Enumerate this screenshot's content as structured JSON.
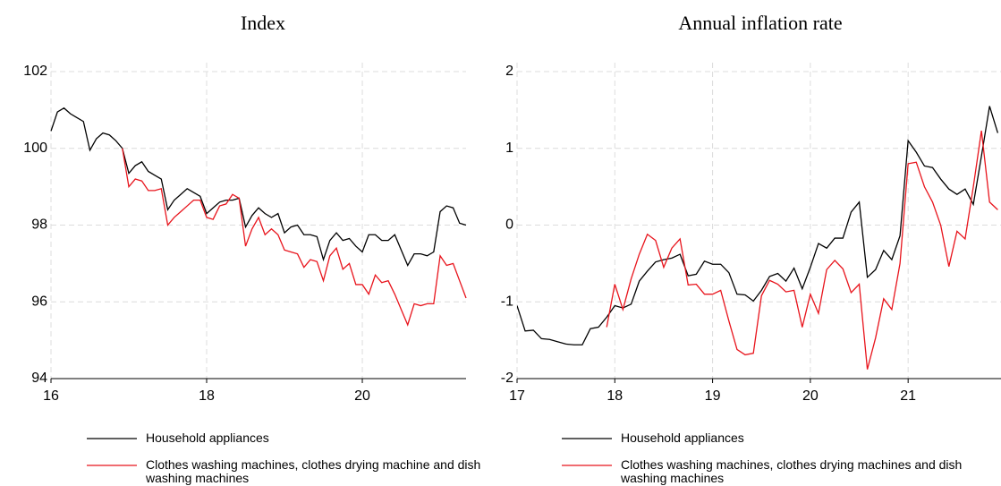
{
  "chart_data": [
    {
      "type": "line",
      "title": "Index",
      "x": [
        16,
        16.083,
        16.167,
        16.25,
        16.333,
        16.417,
        16.5,
        16.583,
        16.667,
        16.75,
        16.833,
        16.917,
        17,
        17.083,
        17.167,
        17.25,
        17.333,
        17.417,
        17.5,
        17.583,
        17.667,
        17.75,
        17.833,
        17.917,
        18,
        18.083,
        18.167,
        18.25,
        18.333,
        18.417,
        18.5,
        18.583,
        18.667,
        18.75,
        18.833,
        18.917,
        19,
        19.083,
        19.167,
        19.25,
        19.333,
        19.417,
        19.5,
        19.583,
        19.667,
        19.75,
        19.833,
        19.917,
        20,
        20.083,
        20.167,
        20.25,
        20.333,
        20.417,
        20.5,
        20.583,
        20.667,
        20.75,
        20.833,
        20.917,
        21,
        21.083,
        21.167,
        21.25,
        21.333
      ],
      "series": [
        {
          "name": "Household appliances",
          "color": "#000000",
          "values": [
            100.45,
            100.95,
            101.05,
            100.9,
            100.8,
            100.7,
            99.95,
            100.25,
            100.4,
            100.35,
            100.2,
            100.0,
            99.35,
            99.55,
            99.65,
            99.4,
            99.3,
            99.2,
            98.4,
            98.65,
            98.8,
            98.95,
            98.85,
            98.75,
            98.3,
            98.45,
            98.6,
            98.65,
            98.65,
            98.7,
            97.95,
            98.25,
            98.45,
            98.3,
            98.2,
            98.3,
            97.8,
            97.95,
            98.0,
            97.75,
            97.75,
            97.7,
            97.1,
            97.6,
            97.8,
            97.6,
            97.65,
            97.45,
            97.3,
            97.75,
            97.75,
            97.6,
            97.6,
            97.75,
            97.35,
            96.95,
            97.25,
            97.25,
            97.2,
            97.3,
            98.35,
            98.5,
            98.45,
            98.05,
            98.0
          ]
        },
        {
          "name": "Clothes washing machines, clothes drying machine and dish washing machines",
          "color": "#e8141c",
          "values": [
            null,
            null,
            null,
            null,
            null,
            null,
            null,
            null,
            null,
            null,
            null,
            100.0,
            99.0,
            99.2,
            99.15,
            98.9,
            98.9,
            98.95,
            98.0,
            98.2,
            98.35,
            98.5,
            98.65,
            98.65,
            98.2,
            98.15,
            98.5,
            98.55,
            98.8,
            98.7,
            97.45,
            97.9,
            98.2,
            97.75,
            97.9,
            97.75,
            97.35,
            97.3,
            97.25,
            96.9,
            97.1,
            97.05,
            96.55,
            97.2,
            97.4,
            96.85,
            97.0,
            96.45,
            96.45,
            96.2,
            96.7,
            96.5,
            96.55,
            96.2,
            95.8,
            95.4,
            95.95,
            95.9,
            95.95,
            95.95,
            97.2,
            96.95,
            97.0,
            96.55,
            96.1
          ]
        }
      ],
      "xlim": [
        16,
        21.333
      ],
      "xticks": [
        16,
        18,
        20
      ],
      "ylim": [
        94,
        102
      ],
      "yticks": [
        94,
        96,
        98,
        100,
        102
      ],
      "grid": true
    },
    {
      "type": "line",
      "title": "Annual inflation rate",
      "x": [
        17,
        17.083,
        17.167,
        17.25,
        17.333,
        17.417,
        17.5,
        17.583,
        17.667,
        17.75,
        17.833,
        17.917,
        18,
        18.083,
        18.167,
        18.25,
        18.333,
        18.417,
        18.5,
        18.583,
        18.667,
        18.75,
        18.833,
        18.917,
        19,
        19.083,
        19.167,
        19.25,
        19.333,
        19.417,
        19.5,
        19.583,
        19.667,
        19.75,
        19.833,
        19.917,
        20,
        20.083,
        20.167,
        20.25,
        20.333,
        20.417,
        20.5,
        20.583,
        20.667,
        20.75,
        20.833,
        20.917,
        21,
        21.083,
        21.167,
        21.25,
        21.333,
        21.417,
        21.5,
        21.583,
        21.667,
        21.75,
        21.833,
        21.917
      ],
      "series": [
        {
          "name": "Household appliances",
          "color": "#000000",
          "values": [
            -1.05,
            -1.38,
            -1.37,
            -1.48,
            -1.49,
            -1.52,
            -1.55,
            -1.56,
            -1.56,
            -1.35,
            -1.33,
            -1.2,
            -1.05,
            -1.08,
            -1.03,
            -0.73,
            -0.6,
            -0.48,
            -0.45,
            -0.43,
            -0.38,
            -0.66,
            -0.64,
            -0.47,
            -0.51,
            -0.51,
            -0.62,
            -0.9,
            -0.91,
            -0.99,
            -0.85,
            -0.67,
            -0.63,
            -0.73,
            -0.56,
            -0.83,
            -0.55,
            -0.24,
            -0.3,
            -0.17,
            -0.17,
            0.17,
            0.3,
            -0.68,
            -0.58,
            -0.33,
            -0.45,
            -0.14,
            1.1,
            0.95,
            0.77,
            0.75,
            0.6,
            0.47,
            0.4,
            0.47,
            0.27,
            0.9,
            1.55,
            1.2
          ]
        },
        {
          "name": "Clothes washing machines, clothes drying machines and dish washing machines",
          "color": "#e8141c",
          "values": [
            null,
            null,
            null,
            null,
            null,
            null,
            null,
            null,
            null,
            null,
            null,
            -1.33,
            -0.77,
            -1.1,
            -0.7,
            -0.38,
            -0.12,
            -0.2,
            -0.55,
            -0.3,
            -0.18,
            -0.78,
            -0.77,
            -0.9,
            -0.9,
            -0.85,
            -1.25,
            -1.62,
            -1.69,
            -1.67,
            -0.92,
            -0.72,
            -0.77,
            -0.87,
            -0.85,
            -1.33,
            -0.9,
            -1.15,
            -0.58,
            -0.46,
            -0.57,
            -0.88,
            -0.77,
            -1.88,
            -1.47,
            -0.96,
            -1.1,
            -0.5,
            0.8,
            0.82,
            0.5,
            0.3,
            0.0,
            -0.54,
            -0.08,
            -0.18,
            0.5,
            1.23,
            0.3,
            0.2
          ]
        }
      ],
      "xlim": [
        17,
        21.95
      ],
      "xticks": [
        17,
        18,
        19,
        20,
        21
      ],
      "ylim": [
        -2,
        2
      ],
      "yticks": [
        -2,
        -1,
        0,
        1,
        2
      ],
      "grid": true
    }
  ]
}
